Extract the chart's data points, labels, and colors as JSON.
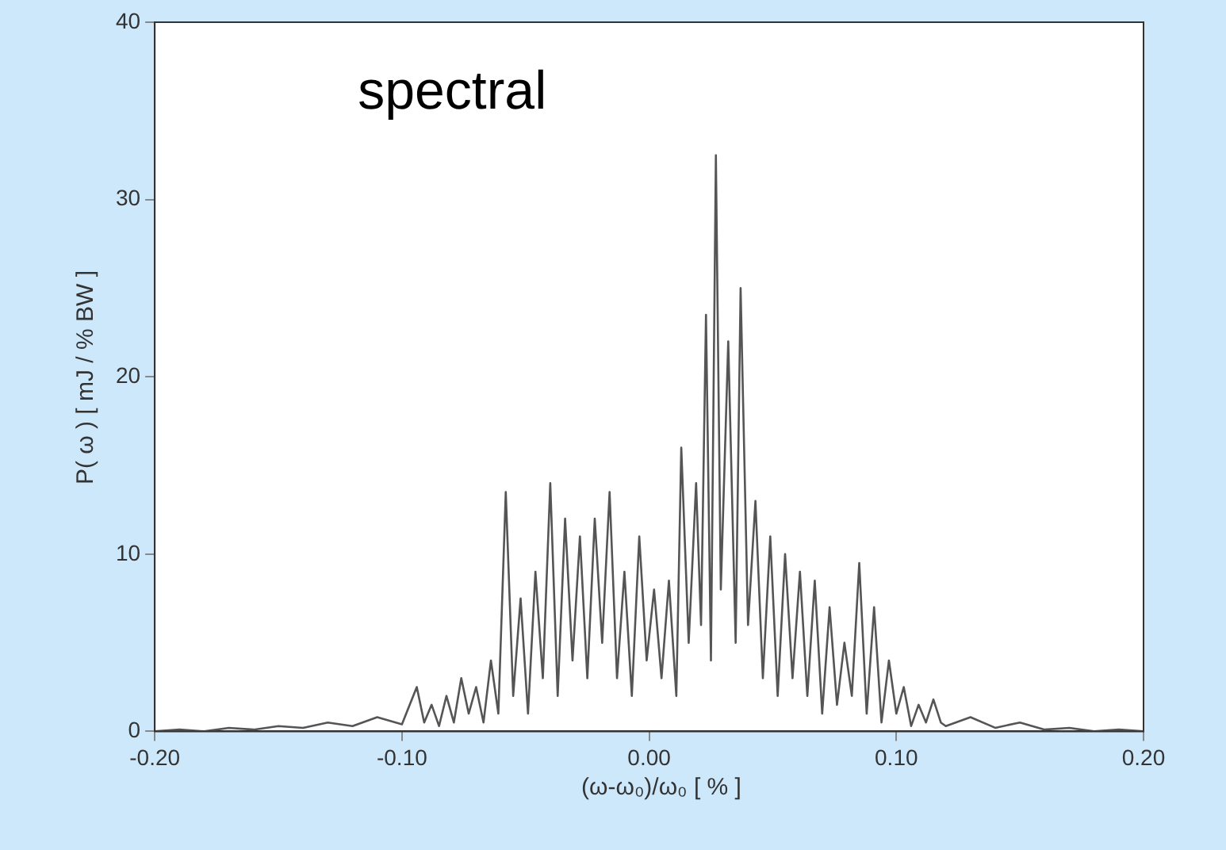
{
  "chart_data": {
    "type": "line",
    "xlabel": "(ω-ω₀)/ω₀ [ % ]",
    "ylabel": "P( ω ) [ mJ / % BW ]",
    "annotations": [
      "spectral"
    ],
    "x": [
      -0.2,
      -0.19,
      -0.18,
      -0.17,
      -0.16,
      -0.15,
      -0.14,
      -0.13,
      -0.12,
      -0.11,
      -0.1,
      -0.094,
      -0.091,
      -0.088,
      -0.085,
      -0.082,
      -0.079,
      -0.076,
      -0.073,
      -0.07,
      -0.067,
      -0.064,
      -0.061,
      -0.058,
      -0.055,
      -0.052,
      -0.049,
      -0.046,
      -0.043,
      -0.04,
      -0.037,
      -0.034,
      -0.031,
      -0.028,
      -0.025,
      -0.022,
      -0.019,
      -0.016,
      -0.013,
      -0.01,
      -0.007,
      -0.004,
      -0.001,
      0.002,
      0.005,
      0.008,
      0.011,
      0.013,
      0.016,
      0.019,
      0.021,
      0.023,
      0.025,
      0.027,
      0.029,
      0.032,
      0.035,
      0.037,
      0.04,
      0.043,
      0.046,
      0.049,
      0.052,
      0.055,
      0.058,
      0.061,
      0.064,
      0.067,
      0.07,
      0.073,
      0.076,
      0.079,
      0.082,
      0.085,
      0.088,
      0.091,
      0.094,
      0.097,
      0.1,
      0.103,
      0.106,
      0.109,
      0.112,
      0.115,
      0.118,
      0.12,
      0.13,
      0.14,
      0.15,
      0.16,
      0.17,
      0.18,
      0.19,
      0.2
    ],
    "series": [
      {
        "color": "#555555",
        "values": [
          0,
          0.1,
          0,
          0.2,
          0.1,
          0.3,
          0.2,
          0.5,
          0.3,
          0.8,
          0.4,
          2.5,
          0.5,
          1.5,
          0.3,
          2,
          0.5,
          3,
          1,
          2.5,
          0.5,
          4,
          1,
          13.5,
          2,
          7.5,
          1,
          9,
          3,
          14,
          2,
          12,
          4,
          11,
          3,
          12,
          5,
          13.5,
          3,
          9,
          2,
          11,
          4,
          8,
          3,
          8.5,
          2,
          16,
          5,
          14,
          6,
          23.5,
          4,
          32.5,
          8,
          22,
          5,
          25,
          6,
          13,
          3,
          11,
          2,
          10,
          3,
          9,
          2,
          8.5,
          1,
          7,
          1.5,
          5,
          2,
          9.5,
          1,
          7,
          0.5,
          4,
          1,
          2.5,
          0.3,
          1.5,
          0.5,
          1.8,
          0.5,
          0.3,
          0.8,
          0.2,
          0.5,
          0.1,
          0.2,
          0,
          0.1,
          0
        ]
      }
    ],
    "xlim": [
      -0.2,
      0.2
    ],
    "xticks": [
      {
        "value": -0.2,
        "label": "-0.20"
      },
      {
        "value": -0.1,
        "label": "-0.10"
      },
      {
        "value": 0,
        "label": "0.00"
      },
      {
        "value": 0.1,
        "label": "0.10"
      },
      {
        "value": 0.2,
        "label": "0.20"
      }
    ],
    "ylim": [
      0,
      40
    ],
    "yticks": [
      0,
      10,
      20,
      30,
      40
    ],
    "grid": false,
    "legend": false,
    "marker": "none",
    "line_style": "solid"
  }
}
